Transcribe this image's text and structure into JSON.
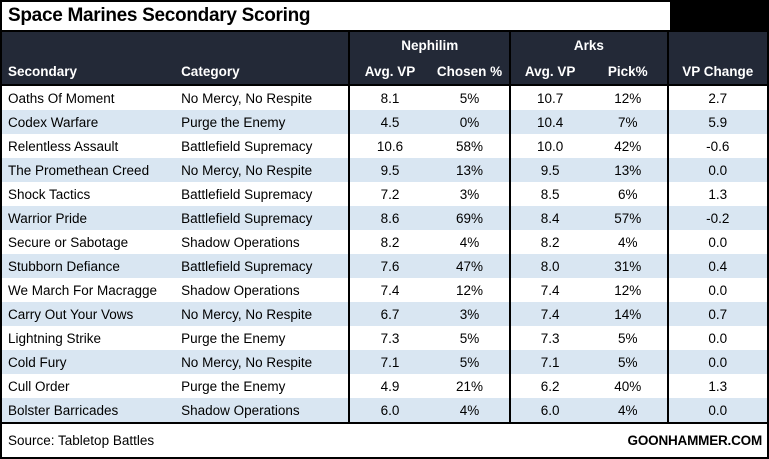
{
  "title": "Space Marines Secondary Scoring",
  "colors": {
    "header_bg": "#232937",
    "row_alt": "#d9e6f2",
    "border": "#000000",
    "text": "#000000",
    "header_text": "#ffffff"
  },
  "footer": {
    "source": "Source: Tabletop Battles",
    "brand": "GOONHAMMER.COM"
  },
  "chart_data": {
    "type": "table",
    "title": "Space Marines Secondary Scoring",
    "group_headers": {
      "nephilim": "Nephilim",
      "arks": "Arks"
    },
    "columns": [
      "Secondary",
      "Category",
      "Avg. VP",
      "Chosen %",
      "Avg. VP",
      "Pick%",
      "VP Change"
    ],
    "rows": [
      [
        "Oaths Of Moment",
        "No Mercy, No Respite",
        "8.1",
        "5%",
        "10.7",
        "12%",
        "2.7"
      ],
      [
        "Codex Warfare",
        "Purge the Enemy",
        "4.5",
        "0%",
        "10.4",
        "7%",
        "5.9"
      ],
      [
        "Relentless Assault",
        "Battlefield Supremacy",
        "10.6",
        "58%",
        "10.0",
        "42%",
        "-0.6"
      ],
      [
        "The Promethean Creed",
        "No Mercy, No Respite",
        "9.5",
        "13%",
        "9.5",
        "13%",
        "0.0"
      ],
      [
        "Shock Tactics",
        "Battlefield Supremacy",
        "7.2",
        "3%",
        "8.5",
        "6%",
        "1.3"
      ],
      [
        "Warrior Pride",
        "Battlefield Supremacy",
        "8.6",
        "69%",
        "8.4",
        "57%",
        "-0.2"
      ],
      [
        "Secure or Sabotage",
        "Shadow Operations",
        "8.2",
        "4%",
        "8.2",
        "4%",
        "0.0"
      ],
      [
        "Stubborn Defiance",
        "Battlefield Supremacy",
        "7.6",
        "47%",
        "8.0",
        "31%",
        "0.4"
      ],
      [
        "We March For Macragge",
        "Shadow Operations",
        "7.4",
        "12%",
        "7.4",
        "12%",
        "0.0"
      ],
      [
        "Carry Out Your Vows",
        "No Mercy, No Respite",
        "6.7",
        "3%",
        "7.4",
        "14%",
        "0.7"
      ],
      [
        "Lightning Strike",
        "Purge the Enemy",
        "7.3",
        "5%",
        "7.3",
        "5%",
        "0.0"
      ],
      [
        "Cold Fury",
        "No Mercy, No Respite",
        "7.1",
        "5%",
        "7.1",
        "5%",
        "0.0"
      ],
      [
        "Cull Order",
        "Purge the Enemy",
        "4.9",
        "21%",
        "6.2",
        "40%",
        "1.3"
      ],
      [
        "Bolster Barricades",
        "Shadow Operations",
        "6.0",
        "4%",
        "6.0",
        "4%",
        "0.0"
      ]
    ]
  }
}
